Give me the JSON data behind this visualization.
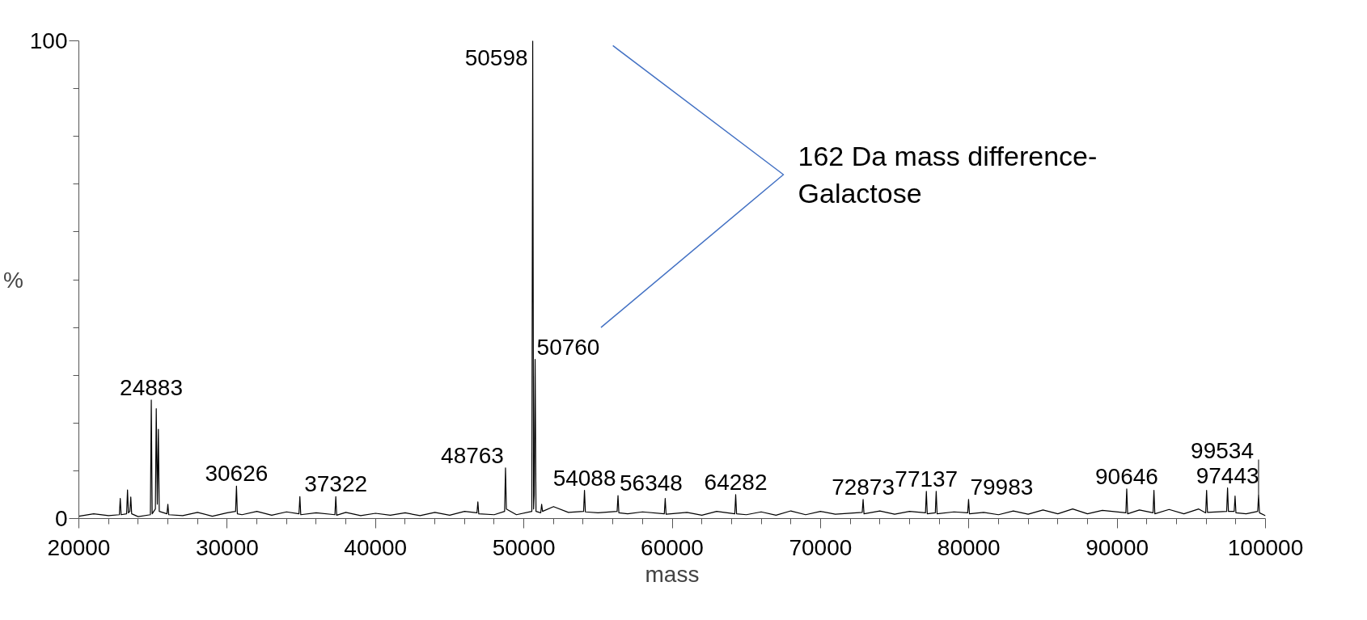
{
  "chart_data": {
    "type": "line",
    "xlabel": "mass",
    "ylabel": "%",
    "xlim": [
      20000,
      100000
    ],
    "ylim": [
      0,
      100
    ],
    "xticks": [
      20000,
      {
        "value": 22000,
        "label": null
      },
      {
        "value": 24000,
        "label": null
      },
      {
        "value": 26000,
        "label": null
      },
      {
        "value": 28000,
        "label": null
      },
      30000,
      {
        "value": 32000,
        "label": null
      },
      {
        "value": 34000,
        "label": null
      },
      {
        "value": 36000,
        "label": null
      },
      {
        "value": 38000,
        "label": null
      },
      40000,
      {
        "value": 42000,
        "label": null
      },
      {
        "value": 44000,
        "label": null
      },
      {
        "value": 46000,
        "label": null
      },
      {
        "value": 48000,
        "label": null
      },
      50000,
      {
        "value": 52000,
        "label": null
      },
      {
        "value": 54000,
        "label": null
      },
      {
        "value": 56000,
        "label": null
      },
      {
        "value": 58000,
        "label": null
      },
      60000,
      {
        "value": 62000,
        "label": null
      },
      {
        "value": 64000,
        "label": null
      },
      {
        "value": 66000,
        "label": null
      },
      {
        "value": 68000,
        "label": null
      },
      70000,
      {
        "value": 72000,
        "label": null
      },
      {
        "value": 74000,
        "label": null
      },
      {
        "value": 76000,
        "label": null
      },
      {
        "value": 78000,
        "label": null
      },
      80000,
      {
        "value": 82000,
        "label": null
      },
      {
        "value": 84000,
        "label": null
      },
      {
        "value": 86000,
        "label": null
      },
      {
        "value": 88000,
        "label": null
      },
      90000,
      {
        "value": 92000,
        "label": null
      },
      {
        "value": 94000,
        "label": null
      },
      {
        "value": 96000,
        "label": null
      },
      {
        "value": 98000,
        "label": null
      },
      100000
    ],
    "yticks": [
      0,
      {
        "value": 10,
        "label": null
      },
      {
        "value": 20,
        "label": null
      },
      {
        "value": 30,
        "label": null
      },
      {
        "value": 40,
        "label": null
      },
      {
        "value": 50,
        "label": null
      },
      {
        "value": 60,
        "label": null
      },
      {
        "value": 70,
        "label": null
      },
      {
        "value": 80,
        "label": null
      },
      {
        "value": 90,
        "label": null
      },
      100
    ],
    "grid": false,
    "marker": "none",
    "line_style": "solid",
    "series": [
      {
        "color": "#000000",
        "x": [
          20000,
          21000,
          22000,
          22730,
          22790,
          22850,
          23220,
          23280,
          23340,
          23440,
          23500,
          23560,
          24000,
          24823,
          24883,
          24943,
          25158,
          25218,
          25290,
          25360,
          25420,
          25940,
          26000,
          26060,
          27000,
          28000,
          29000,
          30000,
          30566,
          30626,
          30686,
          31000,
          32000,
          33000,
          34000,
          34840,
          34900,
          34960,
          36000,
          37262,
          37322,
          37382,
          38000,
          39000,
          40000,
          41000,
          42000,
          43000,
          44000,
          45000,
          46000,
          46840,
          46900,
          46960,
          48000,
          48703,
          48763,
          48823,
          49500,
          50538,
          50598,
          50658,
          50700,
          50760,
          50820,
          51140,
          51200,
          51260,
          52000,
          53000,
          54028,
          54088,
          54148,
          55000,
          56288,
          56348,
          56408,
          57000,
          58000,
          59470,
          59530,
          59590,
          61000,
          62000,
          63000,
          64222,
          64282,
          64342,
          65000,
          66000,
          67000,
          68000,
          69000,
          70000,
          71000,
          72813,
          72873,
          72933,
          74000,
          75000,
          76000,
          77077,
          77137,
          77197,
          77740,
          77800,
          77860,
          79000,
          79923,
          79983,
          80043,
          81000,
          82000,
          83000,
          84000,
          85000,
          86000,
          87000,
          88000,
          89000,
          90586,
          90646,
          90706,
          91500,
          92420,
          92480,
          92540,
          93500,
          94500,
          95500,
          95970,
          96030,
          96090,
          97383,
          97443,
          97503,
          97890,
          97950,
          98010,
          98700,
          99474,
          99534,
          99594,
          100000
        ],
        "values": [
          0.5,
          1.0,
          0.6,
          0.8,
          4.2,
          0.8,
          1.0,
          6.0,
          1.2,
          1.5,
          4.5,
          1.0,
          0.4,
          0.8,
          24.8,
          1.0,
          2.0,
          23.0,
          3.0,
          18.7,
          1.5,
          1.0,
          3.0,
          0.8,
          0.6,
          1.3,
          0.5,
          1.2,
          1.5,
          6.8,
          1.0,
          0.8,
          1.5,
          0.7,
          1.4,
          1.0,
          4.6,
          0.8,
          1.2,
          0.8,
          4.6,
          0.7,
          1.3,
          0.6,
          1.1,
          0.7,
          1.2,
          0.6,
          1.3,
          0.7,
          1.5,
          1.2,
          3.5,
          1.0,
          0.8,
          1.5,
          10.6,
          2.0,
          0.8,
          1.5,
          100,
          2.0,
          5.0,
          33.3,
          1.5,
          1.2,
          3.0,
          1.5,
          2.5,
          1.3,
          1.5,
          5.9,
          1.4,
          1.2,
          1.5,
          4.8,
          1.2,
          1.0,
          1.4,
          1.0,
          4.2,
          0.9,
          1.3,
          0.7,
          1.5,
          1.0,
          5.0,
          1.0,
          0.8,
          1.4,
          0.7,
          1.6,
          0.8,
          1.5,
          0.9,
          1.3,
          4.0,
          1.0,
          1.6,
          0.9,
          1.5,
          1.2,
          5.7,
          1.0,
          1.2,
          5.7,
          1.0,
          1.4,
          1.2,
          4.0,
          1.0,
          1.3,
          0.8,
          1.6,
          0.9,
          1.8,
          1.0,
          2.0,
          1.0,
          1.7,
          1.2,
          6.2,
          1.0,
          1.8,
          1.2,
          5.9,
          1.0,
          1.9,
          1.0,
          2.0,
          1.2,
          5.9,
          1.3,
          1.5,
          6.4,
          1.5,
          1.5,
          4.7,
          1.2,
          1.0,
          1.5,
          4.9,
          1.2,
          0.6
        ]
      }
    ],
    "annotations": [
      {
        "text": "24883",
        "x": 24883,
        "y": 24.8
      },
      {
        "text": "30626",
        "x": 30626,
        "y": 6.8
      },
      {
        "text": "37322",
        "x": 37322,
        "y": 4.6
      },
      {
        "text": "48763",
        "x": 48763,
        "y": 10.6
      },
      {
        "text": "50598",
        "x": 50598,
        "y": 100
      },
      {
        "text": "50760",
        "x": 50760,
        "y": 33.3
      },
      {
        "text": "54088",
        "x": 54088,
        "y": 5.9
      },
      {
        "text": "56348",
        "x": 56348,
        "y": 4.8
      },
      {
        "text": "64282",
        "x": 64282,
        "y": 5.0
      },
      {
        "text": "72873",
        "x": 72873,
        "y": 4.0
      },
      {
        "text": "77137",
        "x": 77137,
        "y": 5.7
      },
      {
        "text": "79983",
        "x": 79983,
        "y": 4.0
      },
      {
        "text": "90646",
        "x": 90646,
        "y": 6.2
      },
      {
        "text": "97443",
        "x": 97443,
        "y": 6.4
      },
      {
        "text": "99534",
        "x": 99534,
        "y": 4.9
      },
      "162 Da mass difference-\nGalactose"
    ]
  }
}
